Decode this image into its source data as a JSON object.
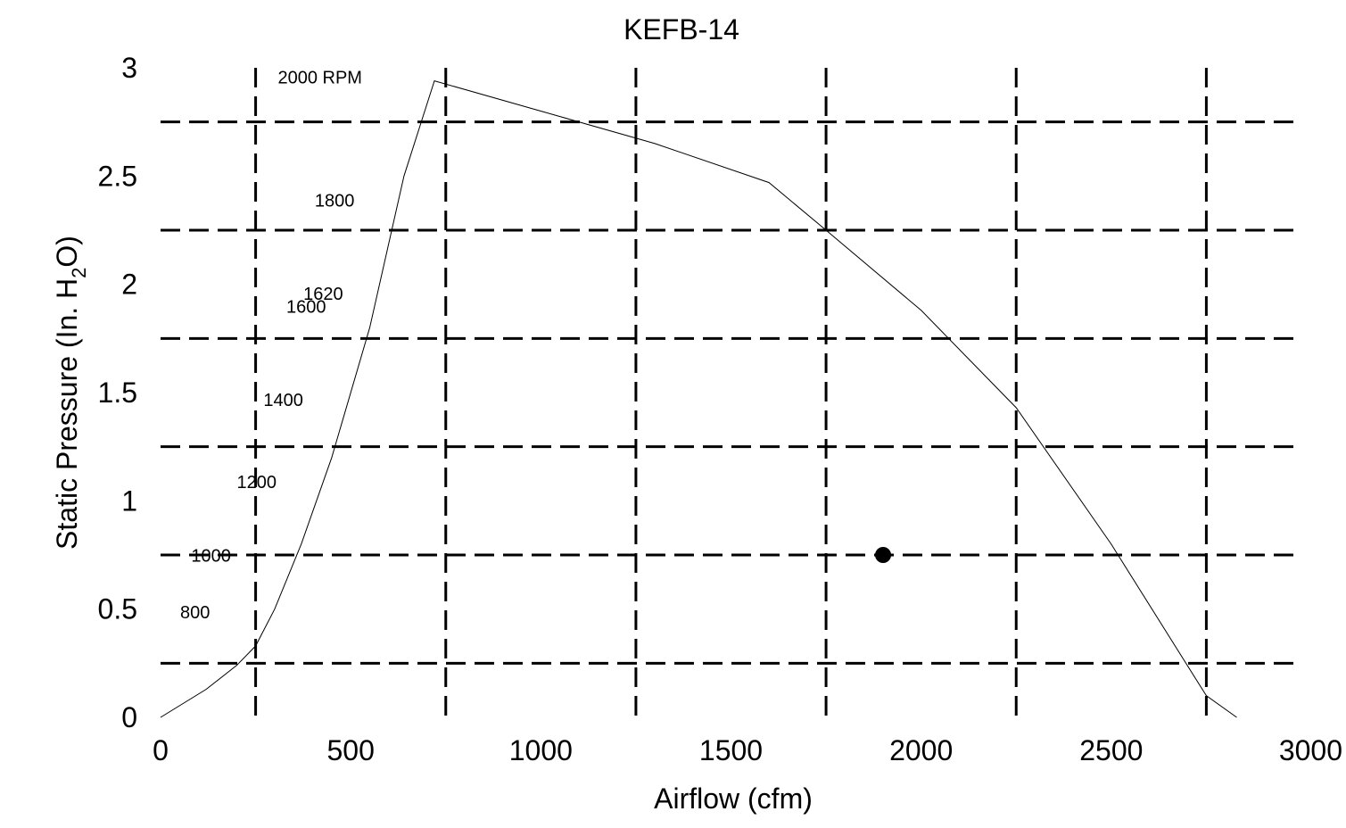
{
  "chart_data": {
    "type": "line",
    "title": "KEFB-14",
    "xlabel": "Airflow (cfm)",
    "ylabel_parts": [
      "Static Pressure (In. H",
      "2",
      "O)"
    ],
    "xlim": [
      0,
      3000
    ],
    "ylim": [
      0,
      3
    ],
    "x_ticks": [
      "0",
      "500",
      "1000",
      "1500",
      "2000",
      "2500",
      "3000"
    ],
    "y_ticks": [
      "0",
      "0.5",
      "1",
      "1.5",
      "2",
      "2.5",
      "3"
    ],
    "grid": true,
    "grid_x": [
      250,
      750,
      1250,
      1750,
      2250,
      2750
    ],
    "grid_y": [
      0.25,
      0.75,
      1.25,
      1.75,
      2.25,
      2.75
    ],
    "series": [
      {
        "x": [
          0,
          120,
          200,
          250,
          300,
          370,
          450,
          550,
          640,
          720,
          1000,
          1300,
          1600,
          1750,
          2000,
          2250,
          2500,
          2750,
          2830
        ],
        "y": [
          0,
          0.13,
          0.24,
          0.33,
          0.5,
          0.8,
          1.2,
          1.8,
          2.5,
          2.94,
          2.8,
          2.65,
          2.47,
          2.25,
          1.88,
          1.43,
          0.8,
          0.1,
          0
        ]
      }
    ],
    "rpm_labels": [
      {
        "text": "2000 RPM",
        "x": 530,
        "y": 2.95
      },
      {
        "text": "1800",
        "x": 510,
        "y": 2.38
      },
      {
        "text": "1620",
        "x": 480,
        "y": 1.95
      },
      {
        "text": "1600",
        "x": 435,
        "y": 1.89
      },
      {
        "text": "1400",
        "x": 375,
        "y": 1.46
      },
      {
        "text": "1200",
        "x": 305,
        "y": 1.08
      },
      {
        "text": "1000",
        "x": 185,
        "y": 0.74
      },
      {
        "text": "800",
        "x": 130,
        "y": 0.48
      }
    ],
    "operating_point": {
      "x": 1900,
      "y": 0.75
    }
  }
}
